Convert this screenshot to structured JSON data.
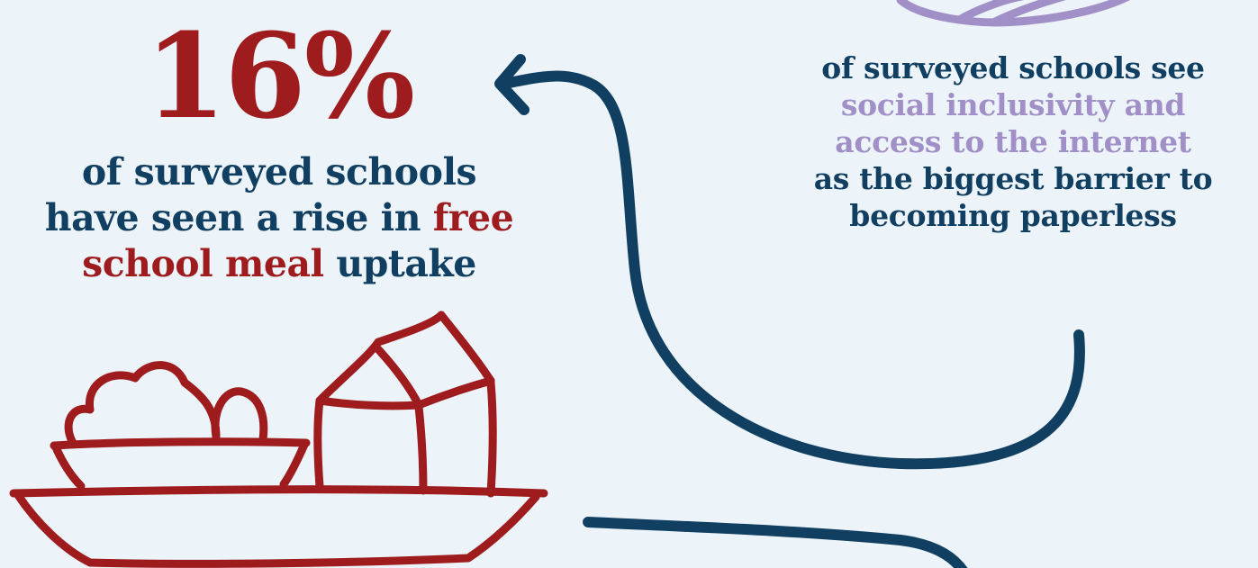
{
  "colors": {
    "background": "#edf4f9",
    "navy": "#103f62",
    "red": "#9e1b1e",
    "purple": "#a18fc8"
  },
  "left_stat": {
    "value": "16%",
    "caption_line1": "of surveyed schools",
    "caption_line2_a": "have seen a rise in ",
    "caption_line2_b": "free",
    "caption_line3_a": "school meal",
    "caption_line3_b": " uptake"
  },
  "right_stat": {
    "line1": "of surveyed schools see",
    "line2": "social inclusivity and",
    "line3": "access to the internet",
    "line4": "as the biggest barrier to",
    "line5": "becoming paperless"
  },
  "icons": {
    "meal_tray": "school-meal-tray-icon",
    "partial_circle": "purple-doodle-circle-icon",
    "arrow": "curved-arrow-icon"
  }
}
